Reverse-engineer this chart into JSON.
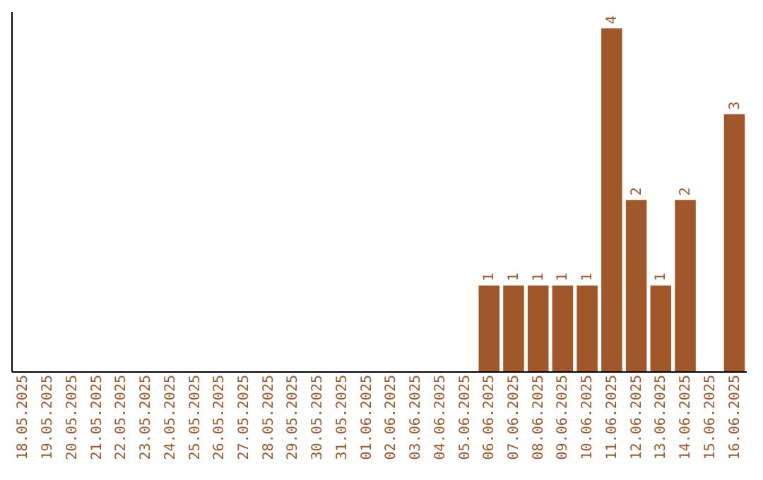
{
  "chart_data": {
    "type": "bar",
    "categories": [
      "18.05.2025",
      "19.05.2025",
      "20.05.2025",
      "21.05.2025",
      "22.05.2025",
      "23.05.2025",
      "24.05.2025",
      "25.05.2025",
      "26.05.2025",
      "27.05.2025",
      "28.05.2025",
      "29.05.2025",
      "30.05.2025",
      "31.05.2025",
      "01.06.2025",
      "02.06.2025",
      "03.06.2025",
      "04.06.2025",
      "05.06.2025",
      "06.06.2025",
      "07.06.2025",
      "08.06.2025",
      "09.06.2025",
      "10.06.2025",
      "11.06.2025",
      "12.06.2025",
      "13.06.2025",
      "14.06.2025",
      "15.06.2025",
      "16.06.2025"
    ],
    "values": [
      null,
      null,
      null,
      null,
      null,
      null,
      null,
      null,
      null,
      null,
      null,
      null,
      null,
      null,
      null,
      null,
      null,
      null,
      null,
      1,
      1,
      1,
      1,
      1,
      4,
      2,
      1,
      2,
      null,
      3
    ],
    "color": "#a0582a",
    "ylim": [
      0,
      4.2
    ],
    "data_labels": true,
    "tick_labels": "x",
    "grid": false
  }
}
